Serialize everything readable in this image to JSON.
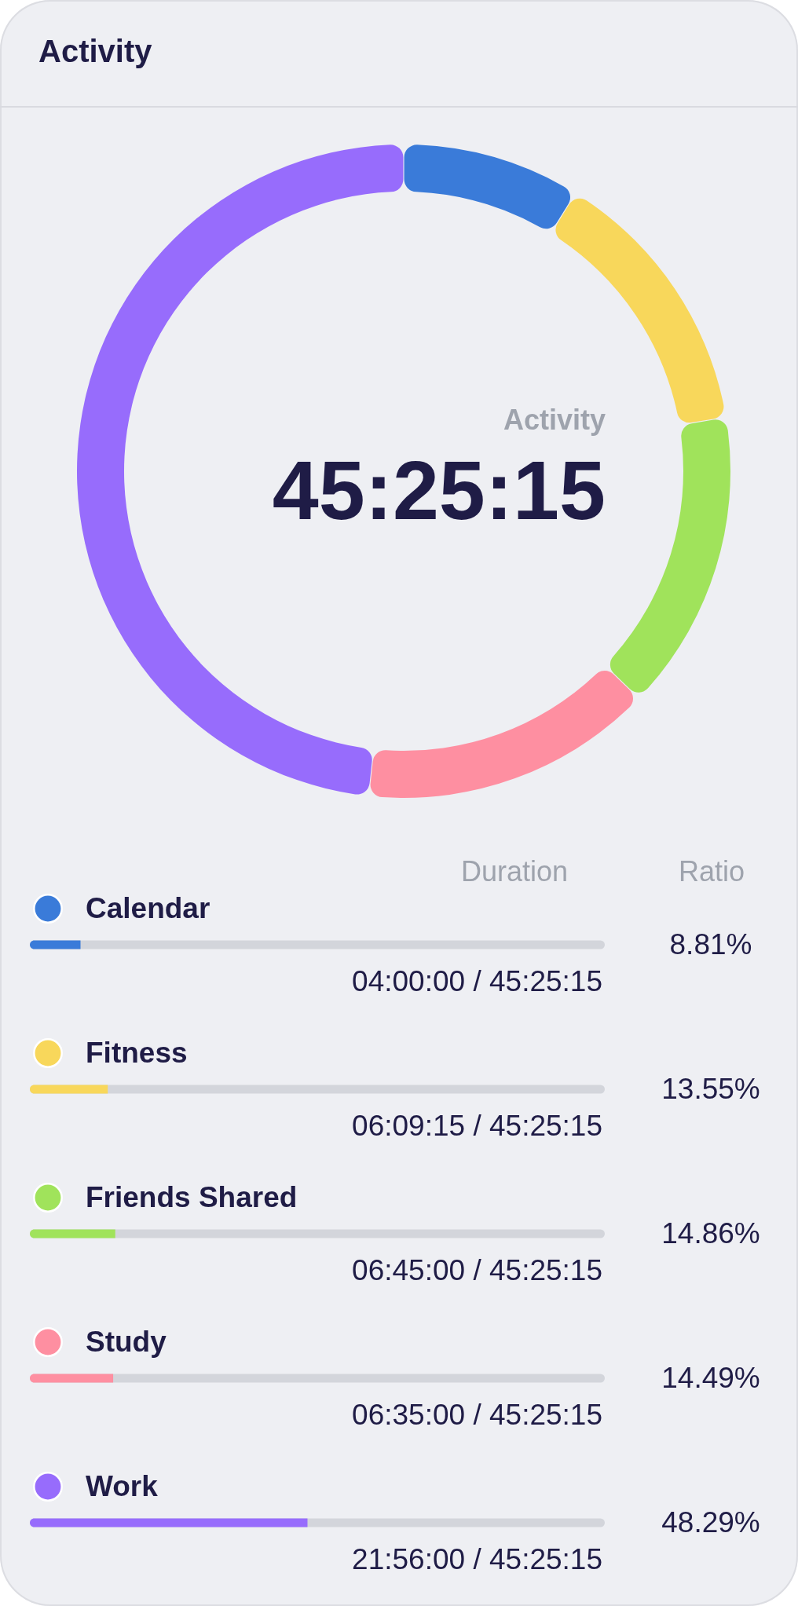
{
  "chart_data": [
    {
      "type": "donut",
      "title": "Activity",
      "categories": [
        "Calendar",
        "Fitness",
        "Friends Shared",
        "Study",
        "Work"
      ],
      "values": [
        8.81,
        13.55,
        14.86,
        14.49,
        48.29
      ],
      "colors": [
        "#3a7bd9",
        "#f8d75b",
        "#a0e35b",
        "#fe8fa1",
        "#976cfc"
      ],
      "annotations": [
        "Activity",
        "45:25:15"
      ],
      "legend": "bottom"
    },
    {
      "type": "bar",
      "orientation": "horizontal",
      "categories": [
        null,
        null,
        null,
        null,
        null
      ],
      "values": [
        8.81,
        13.55,
        14.86,
        14.49,
        48.29
      ],
      "colors": [
        "#3a7bd9",
        "#f8d75b",
        "#a0e35b",
        "#fe8fa1",
        "#976cfc"
      ],
      "grid": "y",
      "value_labels": [
        "8.81%",
        "13.55%",
        "14.86%",
        "14.49%",
        "48.29%"
      ],
      "annotations": [
        "Duration",
        "Ratio",
        "04:00:00 / 45:25:15",
        "06:09:15 / 45:25:15",
        "06:45:00 / 45:25:15",
        "06:35:00 / 45:25:15",
        "21:56:00 / 45:25:15"
      ]
    }
  ]
}
